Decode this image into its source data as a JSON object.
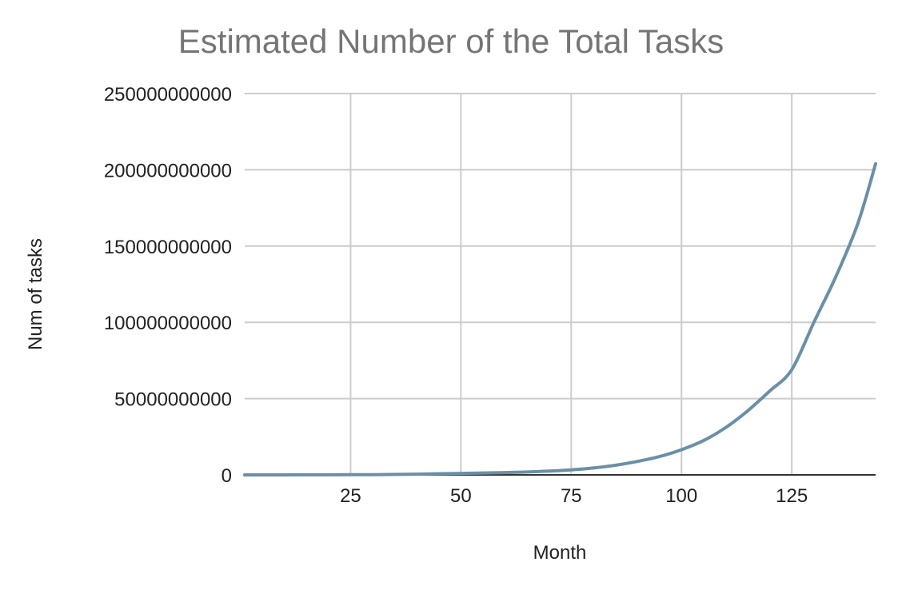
{
  "chart_data": {
    "type": "line",
    "title": "Estimated Number of the Total Tasks",
    "xlabel": "Month",
    "ylabel": "Num of tasks",
    "xlim": [
      1,
      144
    ],
    "ylim": [
      0,
      250000000000
    ],
    "x_ticks": [
      25,
      50,
      75,
      100,
      125
    ],
    "x_tick_labels": [
      "25",
      "50",
      "75",
      "100",
      "125"
    ],
    "y_ticks": [
      0,
      50000000000,
      100000000000,
      150000000000,
      200000000000,
      250000000000
    ],
    "y_tick_labels": [
      "0",
      "50000000000",
      "100000000000",
      "150000000000",
      "200000000000",
      "250000000000"
    ],
    "grid": true,
    "legend": "none",
    "line_color": "#6a8fa8",
    "series": [
      {
        "x": [
          1,
          10,
          20,
          30,
          40,
          50,
          60,
          70,
          75,
          80,
          85,
          90,
          95,
          100,
          105,
          110,
          115,
          120,
          125,
          130,
          135,
          140,
          144
        ],
        "values": [
          0,
          20000000,
          60000000,
          170000000,
          450000000,
          1000000000,
          1500000000,
          2500000000,
          3300000000,
          4500000000,
          6300000000,
          8800000000,
          12000000000,
          16500000000,
          22500000000,
          31000000000,
          42000000000,
          55000000000,
          69000000000,
          100000000000,
          130000000000,
          165000000000,
          204000000000
        ]
      }
    ]
  }
}
